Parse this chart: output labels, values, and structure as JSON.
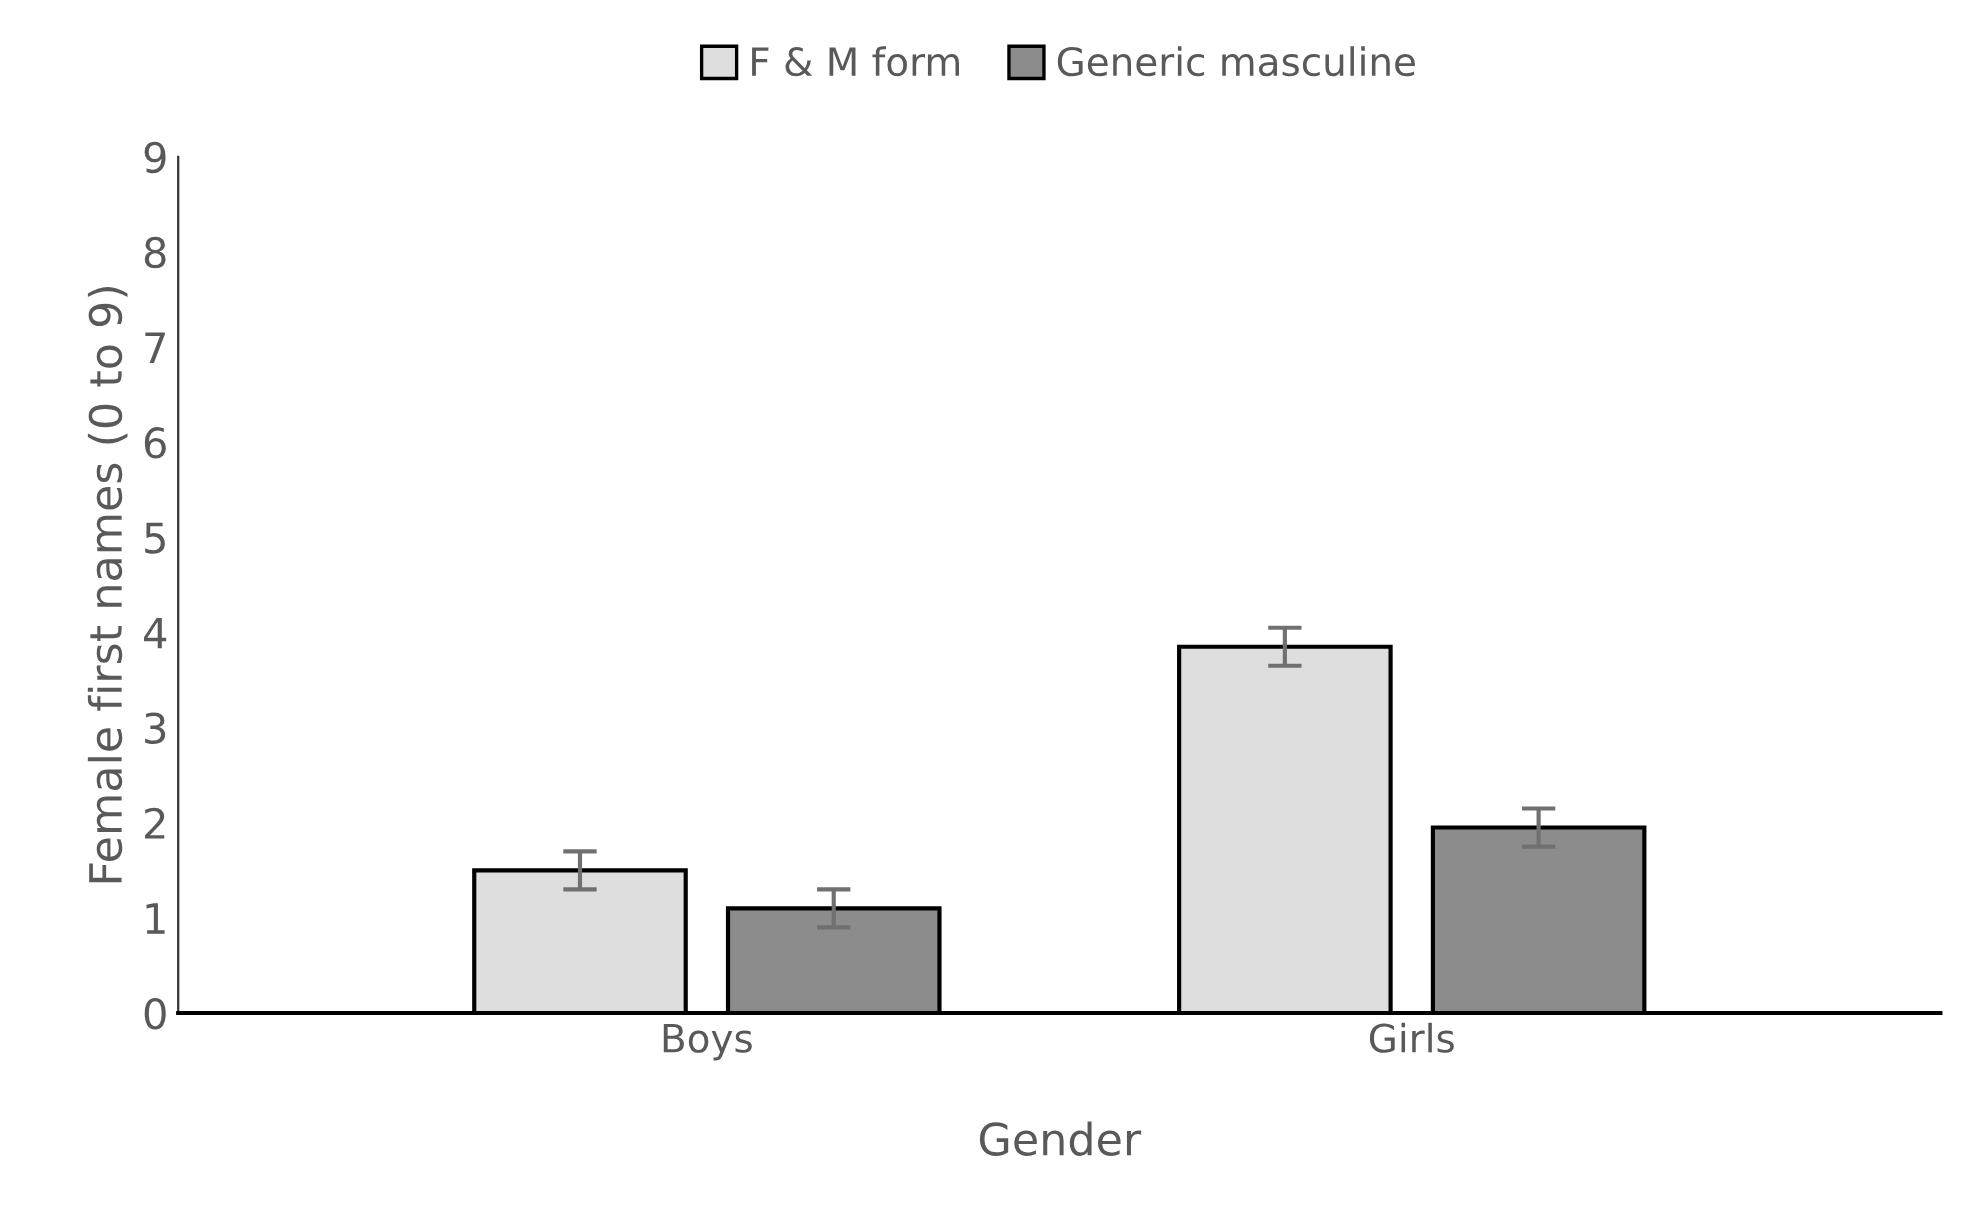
{
  "chart_data": {
    "type": "bar",
    "xlabel": "Gender",
    "ylabel": "Female first names (0 to 9)",
    "categories": [
      "Boys",
      "Girls"
    ],
    "series": [
      {
        "name": "F & M form",
        "color": "#dedede",
        "values": [
          1.5,
          3.85
        ],
        "errors": [
          0.2,
          0.2
        ]
      },
      {
        "name": "Generic masculine",
        "color": "#8c8c8c",
        "values": [
          1.1,
          1.95
        ],
        "errors": [
          0.2,
          0.2
        ]
      }
    ],
    "ylim": [
      0,
      9
    ],
    "yticks": [
      0,
      1,
      2,
      3,
      4,
      5,
      6,
      7,
      8,
      9
    ],
    "grid": false,
    "legend": "top"
  }
}
